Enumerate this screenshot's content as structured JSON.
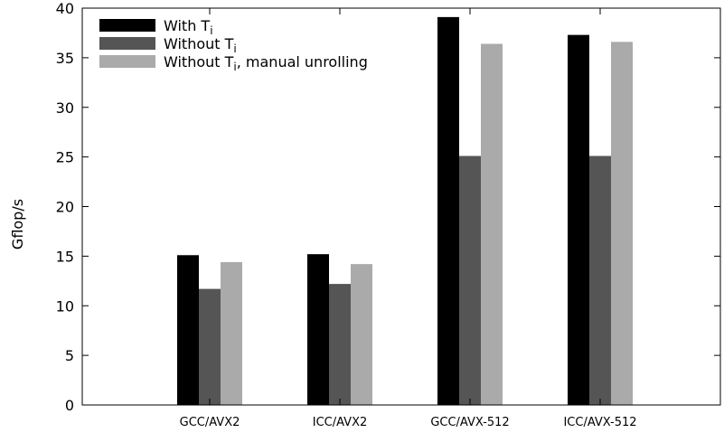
{
  "chart_data": {
    "type": "bar",
    "categories": [
      "GCC/AVX2",
      "ICC/AVX2",
      "GCC/AVX-512",
      "ICC/AVX-512"
    ],
    "series": [
      {
        "name": "With Ti",
        "name_base": "With T",
        "name_sub": "i",
        "name_suffix": "",
        "color": "#000000",
        "values": [
          15.1,
          15.2,
          39.1,
          37.3
        ]
      },
      {
        "name": "Without Ti",
        "name_base": "Without T",
        "name_sub": "i",
        "name_suffix": "",
        "color": "#555555",
        "values": [
          11.7,
          12.2,
          25.1,
          25.1
        ]
      },
      {
        "name": "Without Ti, manual unrolling",
        "name_base": "Without T",
        "name_sub": "i",
        "name_suffix": ", manual unrolling",
        "color": "#aaaaaa",
        "values": [
          14.4,
          14.2,
          36.4,
          36.6
        ]
      }
    ],
    "ylabel": "Gflop/s",
    "xlabel": "",
    "title": "",
    "ylim": [
      0,
      40
    ],
    "yticks": [
      0,
      5,
      10,
      15,
      20,
      25,
      30,
      35,
      40
    ],
    "grid": false,
    "legend_position": "top-left"
  }
}
